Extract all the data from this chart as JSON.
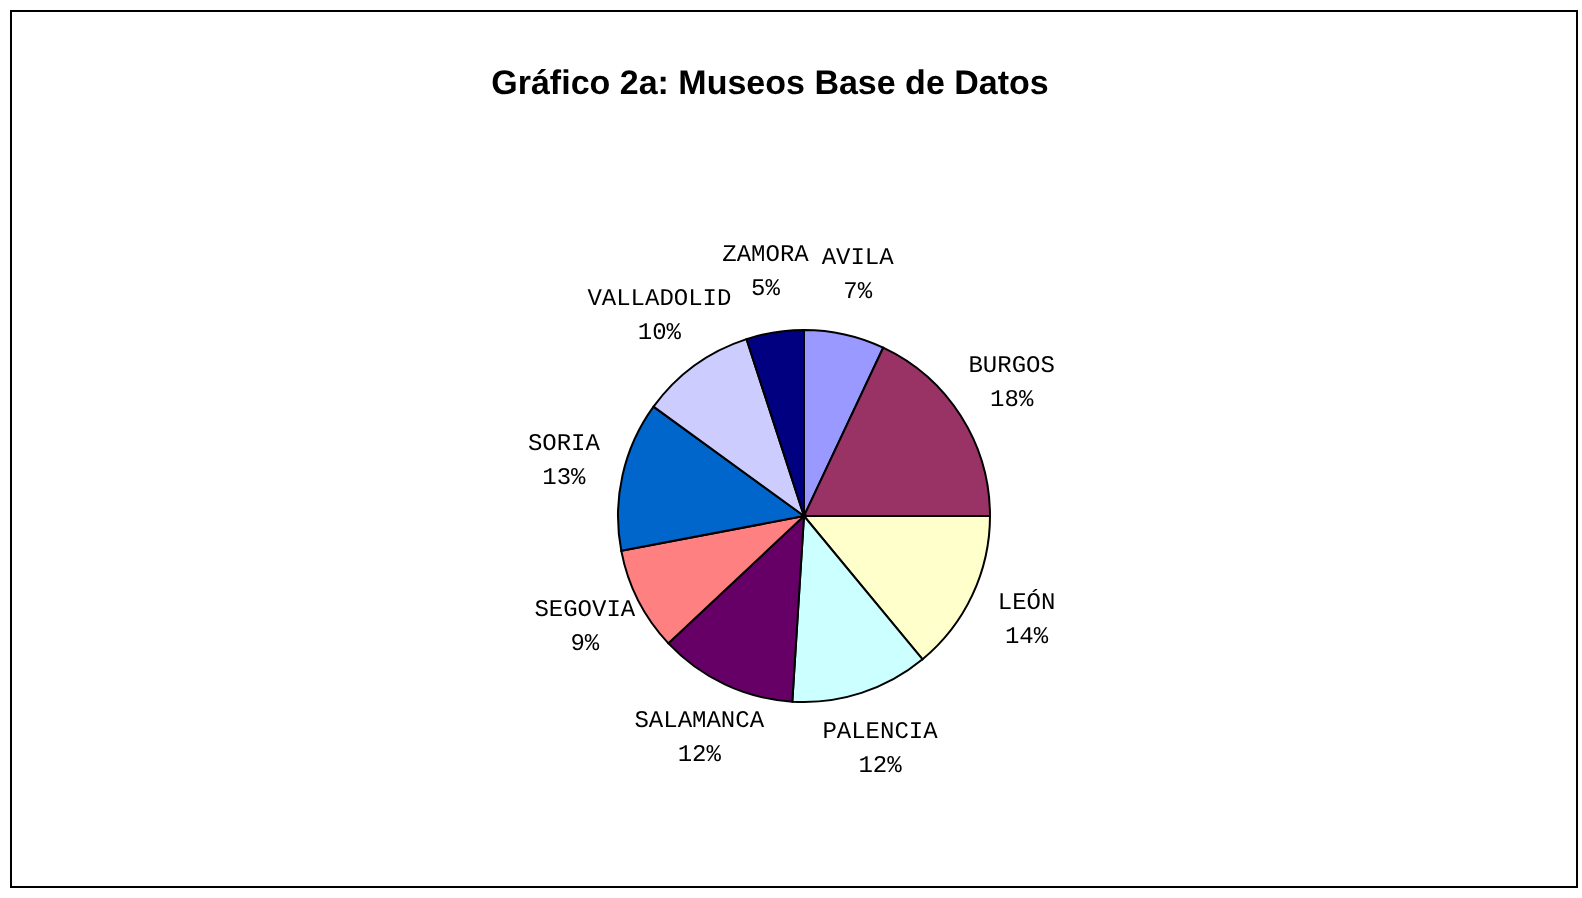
{
  "chart_data": {
    "type": "pie",
    "title": "Gráfico 2a: Museos Base de Datos",
    "categories": [
      "AVILA",
      "BURGOS",
      "LEÓN",
      "PALENCIA",
      "SALAMANCA",
      "SEGOVIA",
      "SORIA",
      "VALLADOLID",
      "ZAMORA"
    ],
    "values": [
      7,
      18,
      14,
      12,
      12,
      9,
      13,
      10,
      5
    ],
    "value_labels": [
      "7%",
      "18%",
      "14%",
      "12%",
      "12%",
      "9%",
      "13%",
      "10%",
      "5%"
    ],
    "colors": [
      "#9999ff",
      "#993366",
      "#ffffcc",
      "#ccffff",
      "#660066",
      "#ff8080",
      "#0066cc",
      "#ccccff",
      "#000080"
    ],
    "legend": false
  }
}
